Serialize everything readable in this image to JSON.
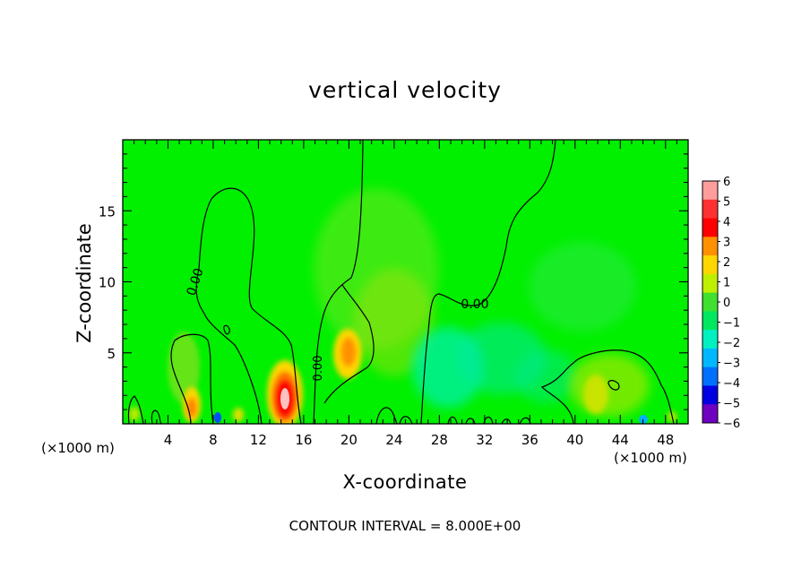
{
  "chart_data": {
    "type": "heatmap",
    "title": "vertical velocity",
    "xlabel": "X-coordinate",
    "ylabel": "Z-coordinate",
    "x_scale_note_left": "(×1000 m)",
    "x_scale_note_right": "(×1000 m)",
    "xlim": [
      0,
      50
    ],
    "ylim": [
      0,
      20
    ],
    "x_ticks": [
      4,
      8,
      12,
      16,
      20,
      24,
      28,
      32,
      36,
      40,
      44,
      48
    ],
    "y_ticks": [
      5,
      10,
      15
    ],
    "footnote": "CONTOUR INTERVAL = 8.000E+00",
    "contour_label": "0.00",
    "colorbar": {
      "labels": [
        "6",
        "5",
        "4",
        "3",
        "2",
        "1",
        "0",
        "−1",
        "−2",
        "−3",
        "−4",
        "−5",
        "−6"
      ],
      "colors": [
        "#ff9c9c",
        "#ff3030",
        "#ff0000",
        "#ff9000",
        "#ffd700",
        "#bfef00",
        "#40e030",
        "#00e860",
        "#00f0c0",
        "#00b8ff",
        "#0070ff",
        "#0000e0",
        "#7000c0"
      ]
    },
    "features": [
      {
        "type": "updraft",
        "x": 14.5,
        "z": 2.0,
        "peak": 6
      },
      {
        "type": "updraft",
        "x": 6.2,
        "z": 1.5,
        "peak": 3
      },
      {
        "type": "updraft",
        "x": 20.0,
        "z": 4.8,
        "peak": 3
      },
      {
        "type": "updraft",
        "x": 42.5,
        "z": 2.5,
        "peak": 1
      },
      {
        "type": "downdraft",
        "x": 30.0,
        "z": 4.0,
        "peak": -2
      },
      {
        "type": "downdraft",
        "x": 8.5,
        "z": 0.5,
        "peak": -3
      }
    ]
  }
}
